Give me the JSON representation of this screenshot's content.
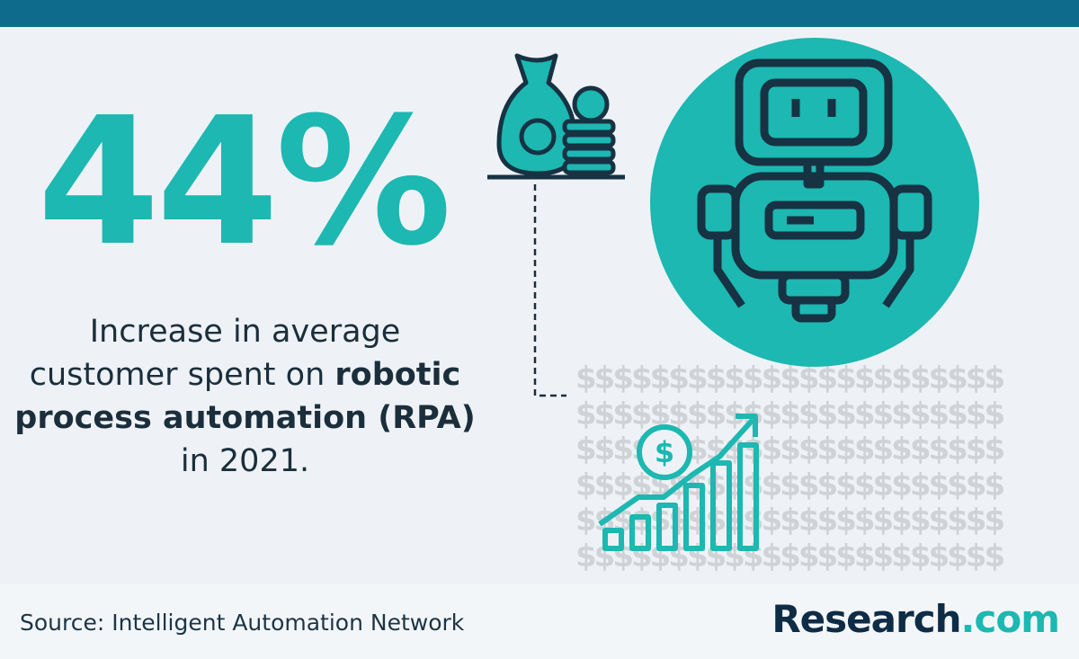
{
  "headline": "44%",
  "description": {
    "lines": [
      [
        "Increase in average"
      ],
      [
        "customer spent on ",
        "robotic"
      ],
      [
        "process automation (RPA)"
      ],
      [
        "in 2021."
      ]
    ]
  },
  "dollar_pattern": "$$$$$$$$$$$$$$$$$$$$$$$",
  "source": "Source: Intelligent Automation Network",
  "logo": {
    "name": "Research",
    "suffix": ".com"
  }
}
